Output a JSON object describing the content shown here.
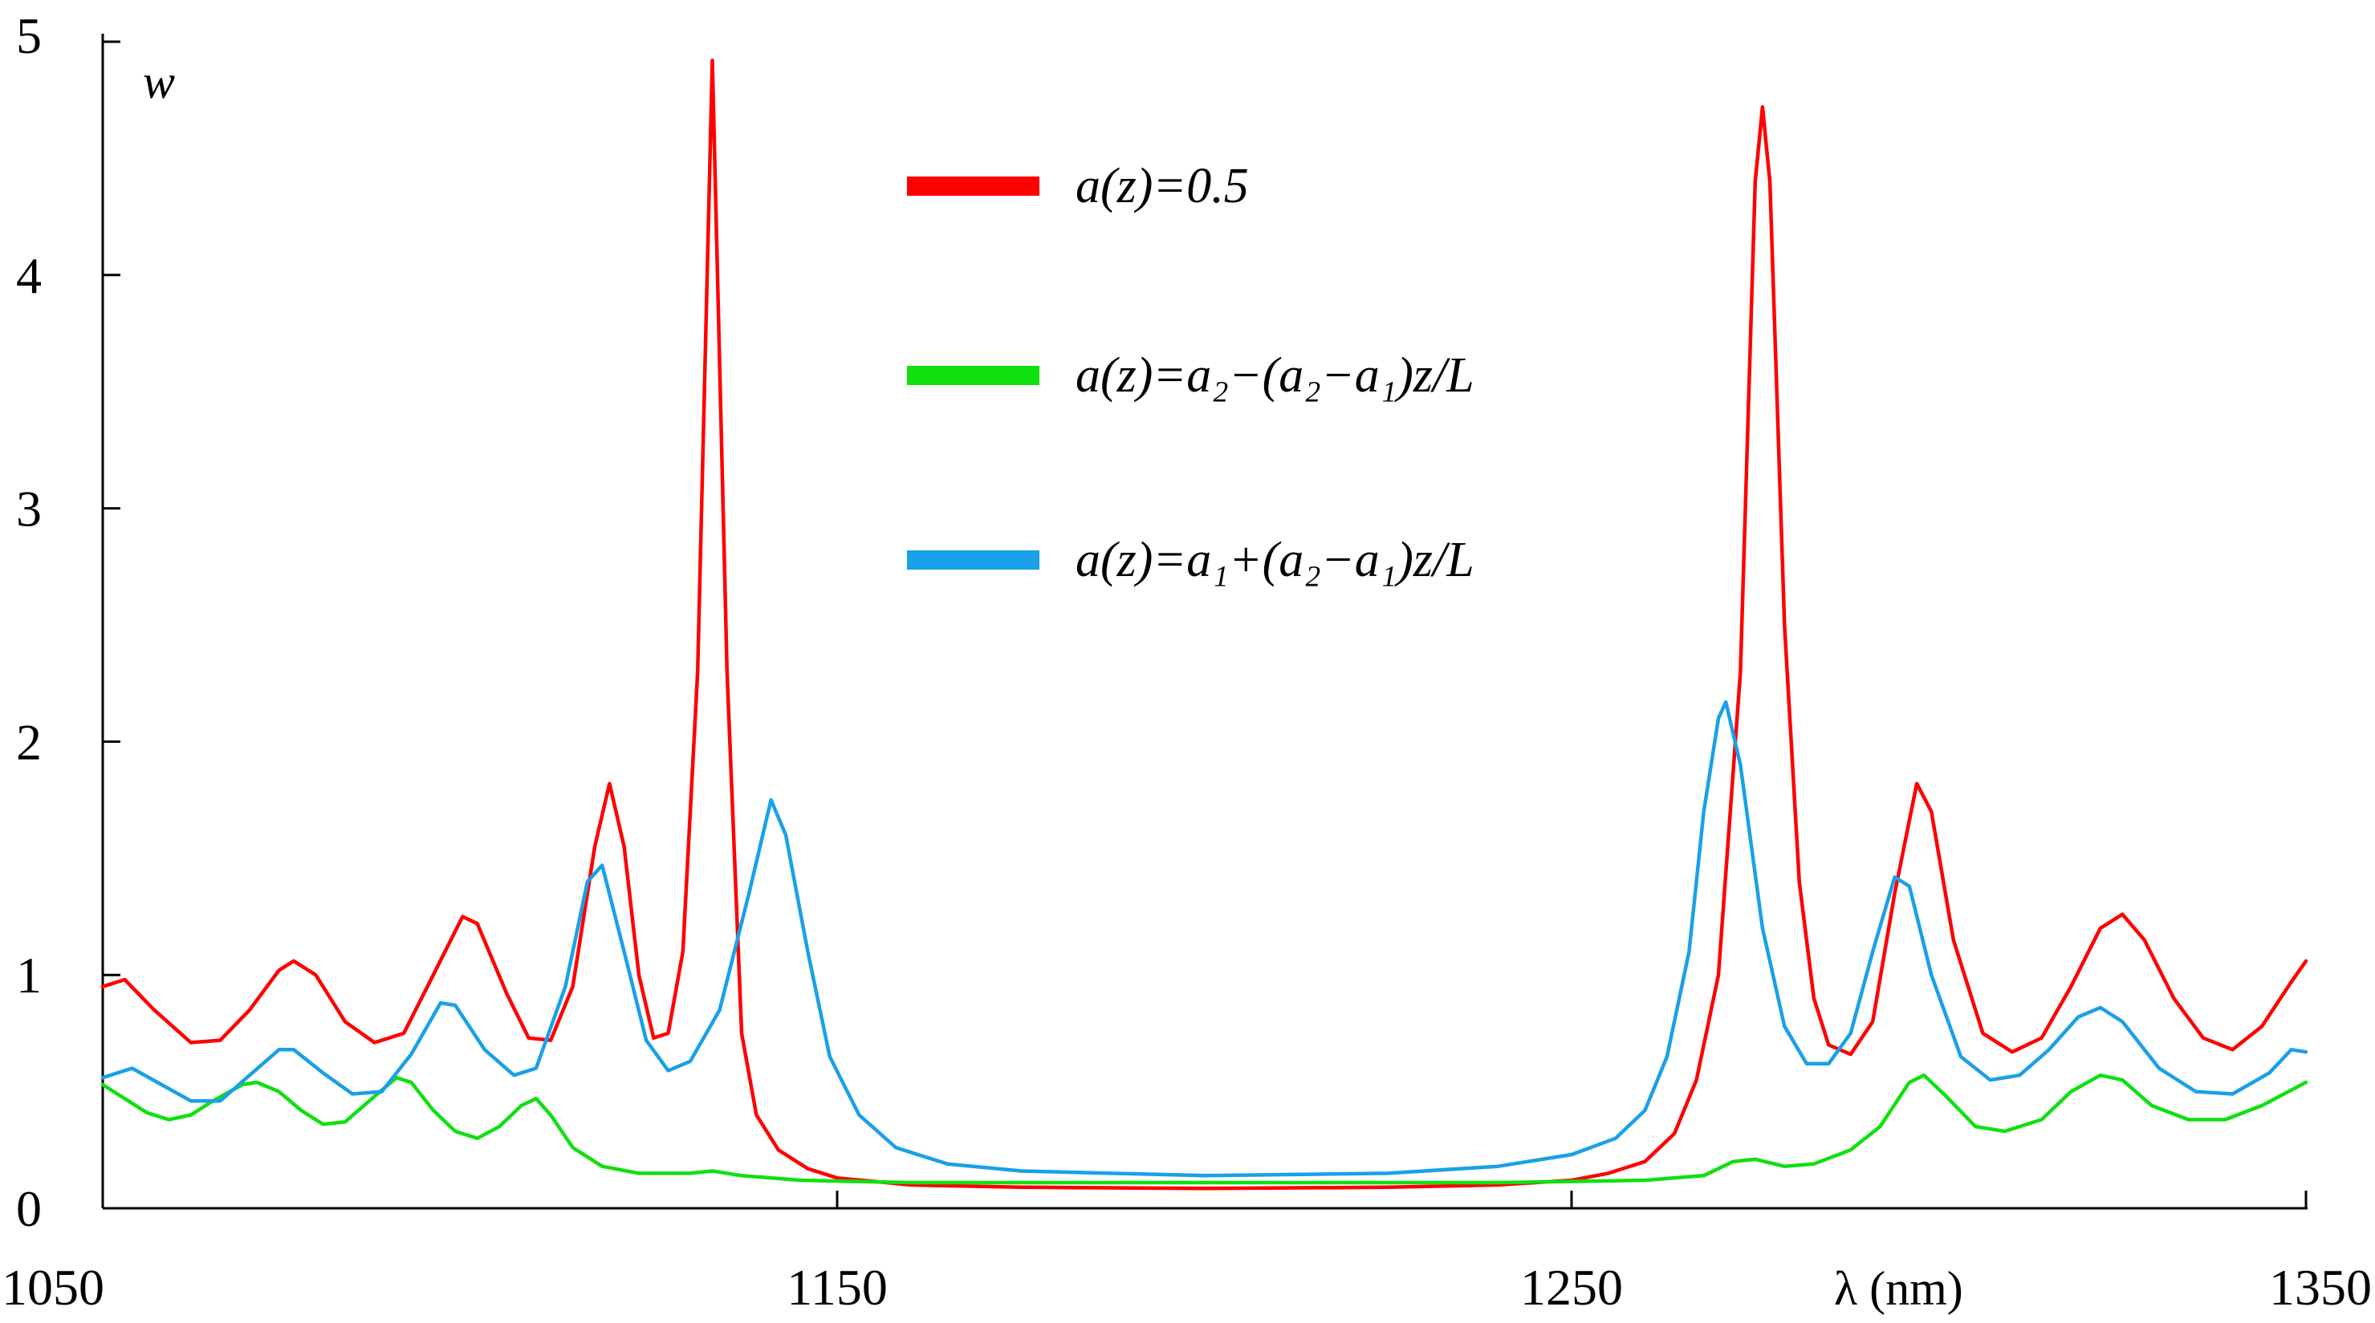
{
  "chart_data": {
    "type": "line",
    "title": "",
    "xlabel": "λ (nm)",
    "ylabel": "w",
    "xlim": [
      1050,
      1350
    ],
    "ylim": [
      0,
      5
    ],
    "x_ticks": [
      1050,
      1150,
      1250,
      1350
    ],
    "y_ticks": [
      0,
      1,
      2,
      3,
      4,
      5
    ],
    "grid": false,
    "legend_position": "top-center",
    "series": [
      {
        "name": "a(z)=0.5",
        "color": "#ff0000",
        "points": [
          [
            1050,
            0.95
          ],
          [
            1053,
            0.98
          ],
          [
            1057,
            0.85
          ],
          [
            1062,
            0.71
          ],
          [
            1066,
            0.72
          ],
          [
            1070,
            0.85
          ],
          [
            1074,
            1.02
          ],
          [
            1076,
            1.06
          ],
          [
            1079,
            1.0
          ],
          [
            1083,
            0.8
          ],
          [
            1087,
            0.71
          ],
          [
            1091,
            0.75
          ],
          [
            1095,
            1.0
          ],
          [
            1099,
            1.25
          ],
          [
            1101,
            1.22
          ],
          [
            1105,
            0.92
          ],
          [
            1108,
            0.73
          ],
          [
            1111,
            0.72
          ],
          [
            1114,
            0.95
          ],
          [
            1117,
            1.55
          ],
          [
            1119,
            1.82
          ],
          [
            1121,
            1.55
          ],
          [
            1123,
            1.0
          ],
          [
            1125,
            0.73
          ],
          [
            1127,
            0.75
          ],
          [
            1129,
            1.1
          ],
          [
            1131,
            2.3
          ],
          [
            1133,
            4.92
          ],
          [
            1135,
            2.3
          ],
          [
            1137,
            0.75
          ],
          [
            1139,
            0.4
          ],
          [
            1142,
            0.25
          ],
          [
            1146,
            0.17
          ],
          [
            1150,
            0.13
          ],
          [
            1160,
            0.1
          ],
          [
            1175,
            0.09
          ],
          [
            1200,
            0.085
          ],
          [
            1225,
            0.09
          ],
          [
            1240,
            0.1
          ],
          [
            1250,
            0.12
          ],
          [
            1255,
            0.15
          ],
          [
            1260,
            0.2
          ],
          [
            1264,
            0.32
          ],
          [
            1267,
            0.55
          ],
          [
            1270,
            1.0
          ],
          [
            1273,
            2.3
          ],
          [
            1275,
            4.4
          ],
          [
            1276,
            4.72
          ],
          [
            1277,
            4.4
          ],
          [
            1279,
            2.5
          ],
          [
            1281,
            1.4
          ],
          [
            1283,
            0.9
          ],
          [
            1285,
            0.7
          ],
          [
            1288,
            0.66
          ],
          [
            1291,
            0.8
          ],
          [
            1294,
            1.35
          ],
          [
            1297,
            1.82
          ],
          [
            1299,
            1.7
          ],
          [
            1302,
            1.15
          ],
          [
            1306,
            0.75
          ],
          [
            1310,
            0.67
          ],
          [
            1314,
            0.73
          ],
          [
            1318,
            0.95
          ],
          [
            1322,
            1.2
          ],
          [
            1325,
            1.26
          ],
          [
            1328,
            1.15
          ],
          [
            1332,
            0.9
          ],
          [
            1336,
            0.73
          ],
          [
            1340,
            0.68
          ],
          [
            1344,
            0.78
          ],
          [
            1348,
            0.97
          ],
          [
            1350,
            1.06
          ]
        ]
      },
      {
        "name": "a(z)=a₂−(a₂−a₁)z/L",
        "color": "#10e010",
        "points": [
          [
            1050,
            0.53
          ],
          [
            1053,
            0.47
          ],
          [
            1056,
            0.41
          ],
          [
            1059,
            0.38
          ],
          [
            1062,
            0.4
          ],
          [
            1065,
            0.46
          ],
          [
            1069,
            0.53
          ],
          [
            1071,
            0.54
          ],
          [
            1074,
            0.5
          ],
          [
            1077,
            0.42
          ],
          [
            1080,
            0.36
          ],
          [
            1083,
            0.37
          ],
          [
            1087,
            0.48
          ],
          [
            1090,
            0.56
          ],
          [
            1092,
            0.54
          ],
          [
            1095,
            0.42
          ],
          [
            1098,
            0.33
          ],
          [
            1101,
            0.3
          ],
          [
            1104,
            0.35
          ],
          [
            1107,
            0.44
          ],
          [
            1109,
            0.47
          ],
          [
            1111,
            0.4
          ],
          [
            1114,
            0.26
          ],
          [
            1118,
            0.18
          ],
          [
            1123,
            0.15
          ],
          [
            1130,
            0.15
          ],
          [
            1133,
            0.16
          ],
          [
            1137,
            0.14
          ],
          [
            1145,
            0.12
          ],
          [
            1160,
            0.11
          ],
          [
            1200,
            0.11
          ],
          [
            1240,
            0.11
          ],
          [
            1260,
            0.12
          ],
          [
            1268,
            0.14
          ],
          [
            1272,
            0.2
          ],
          [
            1275,
            0.21
          ],
          [
            1279,
            0.18
          ],
          [
            1283,
            0.19
          ],
          [
            1288,
            0.25
          ],
          [
            1292,
            0.35
          ],
          [
            1296,
            0.54
          ],
          [
            1298,
            0.57
          ],
          [
            1301,
            0.48
          ],
          [
            1305,
            0.35
          ],
          [
            1309,
            0.33
          ],
          [
            1314,
            0.38
          ],
          [
            1318,
            0.5
          ],
          [
            1322,
            0.57
          ],
          [
            1325,
            0.55
          ],
          [
            1329,
            0.44
          ],
          [
            1334,
            0.38
          ],
          [
            1339,
            0.38
          ],
          [
            1344,
            0.44
          ],
          [
            1350,
            0.54
          ]
        ]
      },
      {
        "name": "a(z)=a₁+(a₂−a₁)z/L",
        "color": "#1aa0e8",
        "points": [
          [
            1050,
            0.56
          ],
          [
            1054,
            0.6
          ],
          [
            1058,
            0.53
          ],
          [
            1062,
            0.46
          ],
          [
            1066,
            0.46
          ],
          [
            1070,
            0.57
          ],
          [
            1074,
            0.68
          ],
          [
            1076,
            0.68
          ],
          [
            1080,
            0.58
          ],
          [
            1084,
            0.49
          ],
          [
            1088,
            0.5
          ],
          [
            1092,
            0.66
          ],
          [
            1096,
            0.88
          ],
          [
            1098,
            0.87
          ],
          [
            1102,
            0.68
          ],
          [
            1106,
            0.57
          ],
          [
            1109,
            0.6
          ],
          [
            1113,
            0.95
          ],
          [
            1116,
            1.4
          ],
          [
            1118,
            1.47
          ],
          [
            1121,
            1.1
          ],
          [
            1124,
            0.72
          ],
          [
            1127,
            0.59
          ],
          [
            1130,
            0.63
          ],
          [
            1134,
            0.85
          ],
          [
            1138,
            1.35
          ],
          [
            1141,
            1.75
          ],
          [
            1143,
            1.6
          ],
          [
            1146,
            1.1
          ],
          [
            1149,
            0.65
          ],
          [
            1153,
            0.4
          ],
          [
            1158,
            0.26
          ],
          [
            1165,
            0.19
          ],
          [
            1175,
            0.16
          ],
          [
            1200,
            0.14
          ],
          [
            1225,
            0.15
          ],
          [
            1240,
            0.18
          ],
          [
            1250,
            0.23
          ],
          [
            1256,
            0.3
          ],
          [
            1260,
            0.42
          ],
          [
            1263,
            0.65
          ],
          [
            1266,
            1.1
          ],
          [
            1268,
            1.7
          ],
          [
            1270,
            2.1
          ],
          [
            1271,
            2.17
          ],
          [
            1273,
            1.9
          ],
          [
            1276,
            1.2
          ],
          [
            1279,
            0.78
          ],
          [
            1282,
            0.62
          ],
          [
            1285,
            0.62
          ],
          [
            1288,
            0.75
          ],
          [
            1291,
            1.1
          ],
          [
            1294,
            1.42
          ],
          [
            1296,
            1.38
          ],
          [
            1299,
            1.0
          ],
          [
            1303,
            0.65
          ],
          [
            1307,
            0.55
          ],
          [
            1311,
            0.57
          ],
          [
            1315,
            0.68
          ],
          [
            1319,
            0.82
          ],
          [
            1322,
            0.86
          ],
          [
            1325,
            0.8
          ],
          [
            1330,
            0.6
          ],
          [
            1335,
            0.5
          ],
          [
            1340,
            0.49
          ],
          [
            1345,
            0.58
          ],
          [
            1348,
            0.68
          ],
          [
            1350,
            0.67
          ]
        ]
      }
    ]
  },
  "legend": {
    "entries": [
      {
        "label": "a(z)=0.5",
        "color": "#ff0000"
      },
      {
        "label": "a(z)=a₂−(a₂−a₁)z/L",
        "color": "#10e010"
      },
      {
        "label": "a(z)=a₁+(a₂−a₁)z/L",
        "color": "#1aa0e8"
      }
    ]
  }
}
